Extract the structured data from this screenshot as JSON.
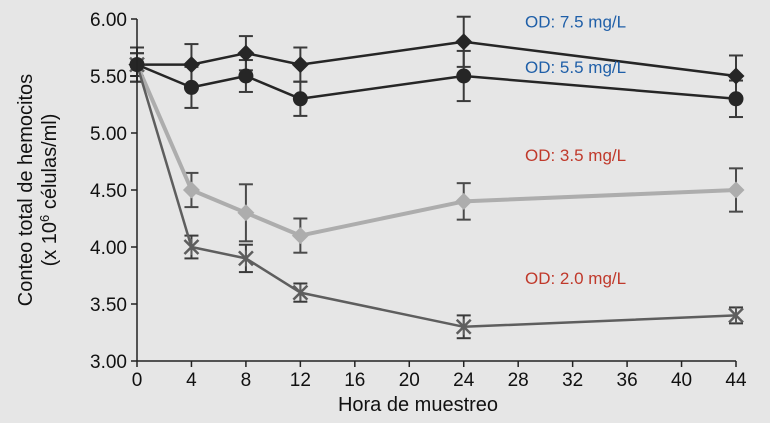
{
  "chart_data": {
    "type": "line",
    "title": "",
    "xlabel": "Hora de muestreo",
    "ylabel_line1": "Conteo total de hemocitos",
    "ylabel_line2_pre": "(x 10",
    "ylabel_line2_sup": "6",
    "ylabel_line2_post": " células/ml)",
    "xlim": [
      0,
      44
    ],
    "ylim": [
      3.0,
      6.0
    ],
    "xticks": [
      "0",
      "4",
      "8",
      "12",
      "16",
      "20",
      "24",
      "28",
      "32",
      "36",
      "40",
      "44"
    ],
    "yticks": [
      "3.00",
      "3.50",
      "4.00",
      "4.50",
      "5.00",
      "5.50",
      "6.00"
    ],
    "grid": false,
    "x": [
      0,
      4,
      8,
      12,
      24,
      44
    ],
    "series": [
      {
        "name": "OD: 7.5 mg/L",
        "marker": "diamond",
        "line_color": "#262626",
        "marker_color": "#262626",
        "label_color": "#1f5fa8",
        "values": [
          5.6,
          5.6,
          5.7,
          5.6,
          5.8,
          5.5
        ],
        "errors": [
          0.15,
          0.18,
          0.15,
          0.15,
          0.22,
          0.18
        ]
      },
      {
        "name": "OD: 5.5 mg/L",
        "marker": "circle",
        "line_color": "#262626",
        "marker_color": "#262626",
        "label_color": "#1f5fa8",
        "values": [
          5.6,
          5.4,
          5.5,
          5.3,
          5.5,
          5.3
        ],
        "errors": [
          0.15,
          0.18,
          0.14,
          0.15,
          0.22,
          0.16
        ]
      },
      {
        "name": "OD: 3.5 mg/L",
        "marker": "diamond",
        "line_color": "#adadad",
        "marker_color": "#adadad",
        "label_color": "#c0392b",
        "values": [
          5.6,
          4.5,
          4.3,
          4.1,
          4.4,
          4.5
        ],
        "errors": [
          0.1,
          0.15,
          0.25,
          0.15,
          0.16,
          0.19
        ]
      },
      {
        "name": "OD: 2.0 mg/L",
        "marker": "star",
        "line_color": "#5e5e5e",
        "marker_color": "#5e5e5e",
        "label_color": "#c0392b",
        "values": [
          5.6,
          4.0,
          3.9,
          3.6,
          3.3,
          3.4
        ],
        "errors": [
          0.1,
          0.1,
          0.12,
          0.08,
          0.1,
          0.07
        ]
      }
    ]
  }
}
